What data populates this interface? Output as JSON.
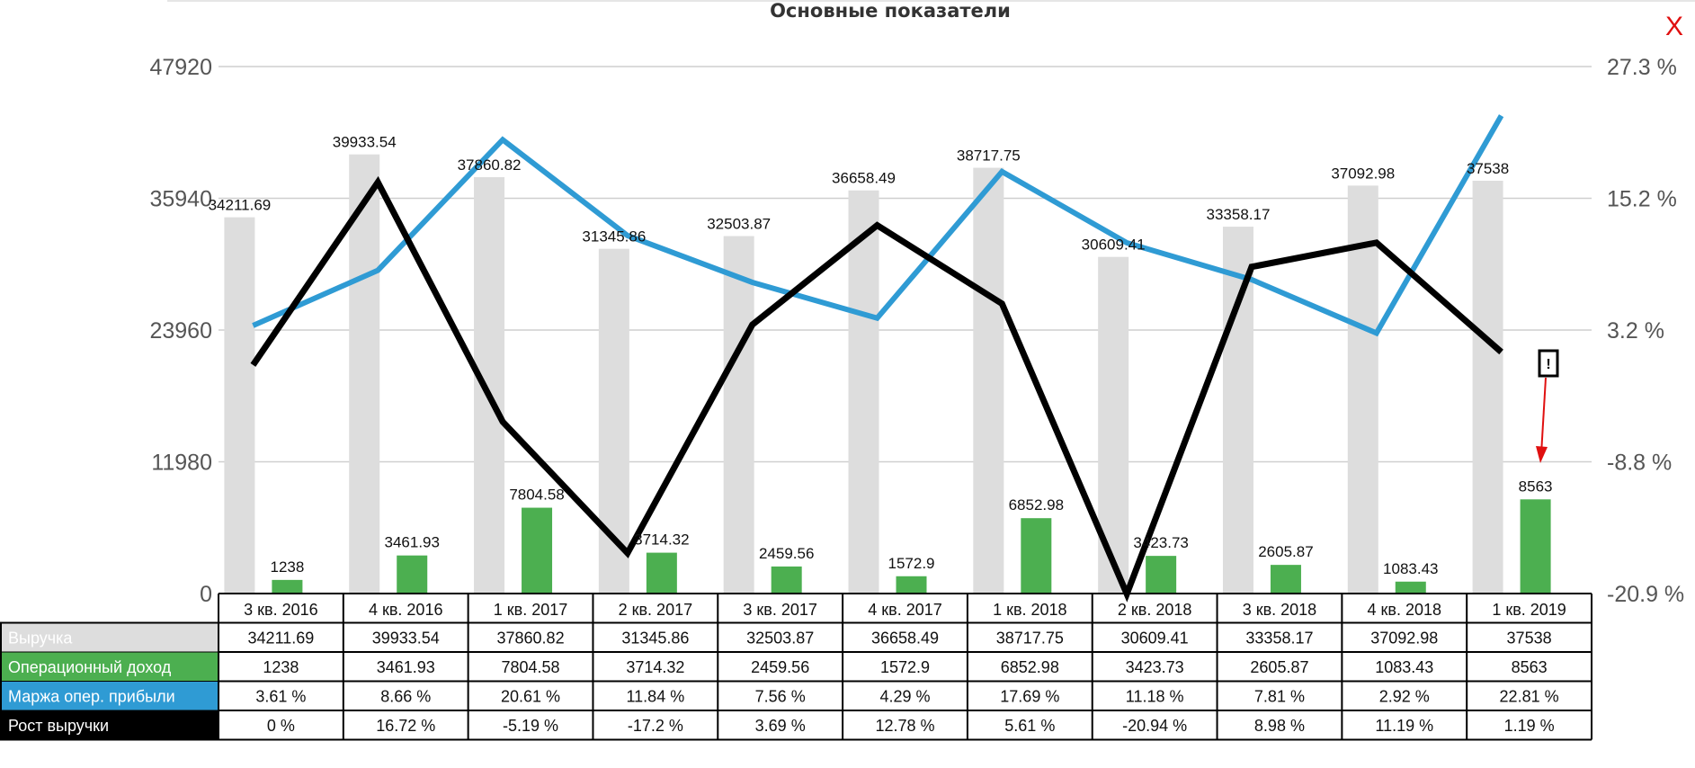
{
  "close_label": "X",
  "alert_marker": "!",
  "chart_data": {
    "type": "bar",
    "title": "Основные показатели",
    "categories": [
      "3 кв. 2016",
      "4 кв. 2016",
      "1 кв. 2017",
      "2 кв. 2017",
      "3 кв. 2017",
      "4 кв. 2017",
      "1 кв. 2018",
      "2 кв. 2018",
      "3 кв. 2018",
      "4 кв. 2018",
      "1 кв. 2019"
    ],
    "ylim": [
      0,
      47920
    ],
    "y_ticks": [
      "0",
      "11980",
      "23960",
      "35940",
      "47920"
    ],
    "y2lim": [
      -20.9,
      27.3
    ],
    "y2_ticks": [
      "-20.9 %",
      "-8.8 %",
      "3.2 %",
      "15.2 %",
      "27.3 %"
    ],
    "grid": true,
    "colors": {
      "revenue": "#dddddd",
      "operating_income": "#4caf50",
      "margin": "#2f9bd4",
      "growth": "#000000",
      "close": "#e01010",
      "arrow": "#e01010"
    },
    "series": [
      {
        "key": "revenue",
        "name": "Выручка",
        "kind": "bar",
        "axis": "left",
        "values": [
          34211.69,
          39933.54,
          37860.82,
          31345.86,
          32503.87,
          36658.49,
          38717.75,
          30609.41,
          33358.17,
          37092.98,
          37538
        ],
        "labels": [
          "34211.69",
          "39933.54",
          "37860.82",
          "31345.86",
          "32503.87",
          "36658.49",
          "38717.75",
          "30609.41",
          "33358.17",
          "37092.98",
          "37538"
        ]
      },
      {
        "key": "operating_income",
        "name": "Операционный доход",
        "kind": "bar",
        "axis": "left",
        "values": [
          1238,
          3461.93,
          7804.58,
          3714.32,
          2459.56,
          1572.9,
          6852.98,
          3423.73,
          2605.87,
          1083.43,
          8563
        ],
        "labels": [
          "1238",
          "3461.93",
          "7804.58",
          "3714.32",
          "2459.56",
          "1572.9",
          "6852.98",
          "3423.73",
          "2605.87",
          "1083.43",
          "8563"
        ]
      },
      {
        "key": "margin",
        "name": "Маржа опер. прибыли",
        "kind": "line",
        "axis": "right",
        "values": [
          3.61,
          8.66,
          20.61,
          11.84,
          7.56,
          4.29,
          17.69,
          11.18,
          7.81,
          2.92,
          22.81
        ],
        "labels": [
          "3.61 %",
          "8.66 %",
          "20.61 %",
          "11.84 %",
          "7.56 %",
          "4.29 %",
          "17.69 %",
          "11.18 %",
          "7.81 %",
          "2.92 %",
          "22.81 %"
        ]
      },
      {
        "key": "growth",
        "name": "Рост выручки",
        "kind": "line",
        "axis": "right",
        "values": [
          0,
          16.72,
          -5.19,
          -17.2,
          3.69,
          12.78,
          5.61,
          -20.94,
          8.98,
          11.19,
          1.19
        ],
        "labels": [
          "0 %",
          "16.72 %",
          "-5.19 %",
          "-17.2 %",
          "3.69 %",
          "12.78 %",
          "5.61 %",
          "-20.94 %",
          "8.98 %",
          "11.19 %",
          "1.19 %"
        ]
      }
    ]
  }
}
